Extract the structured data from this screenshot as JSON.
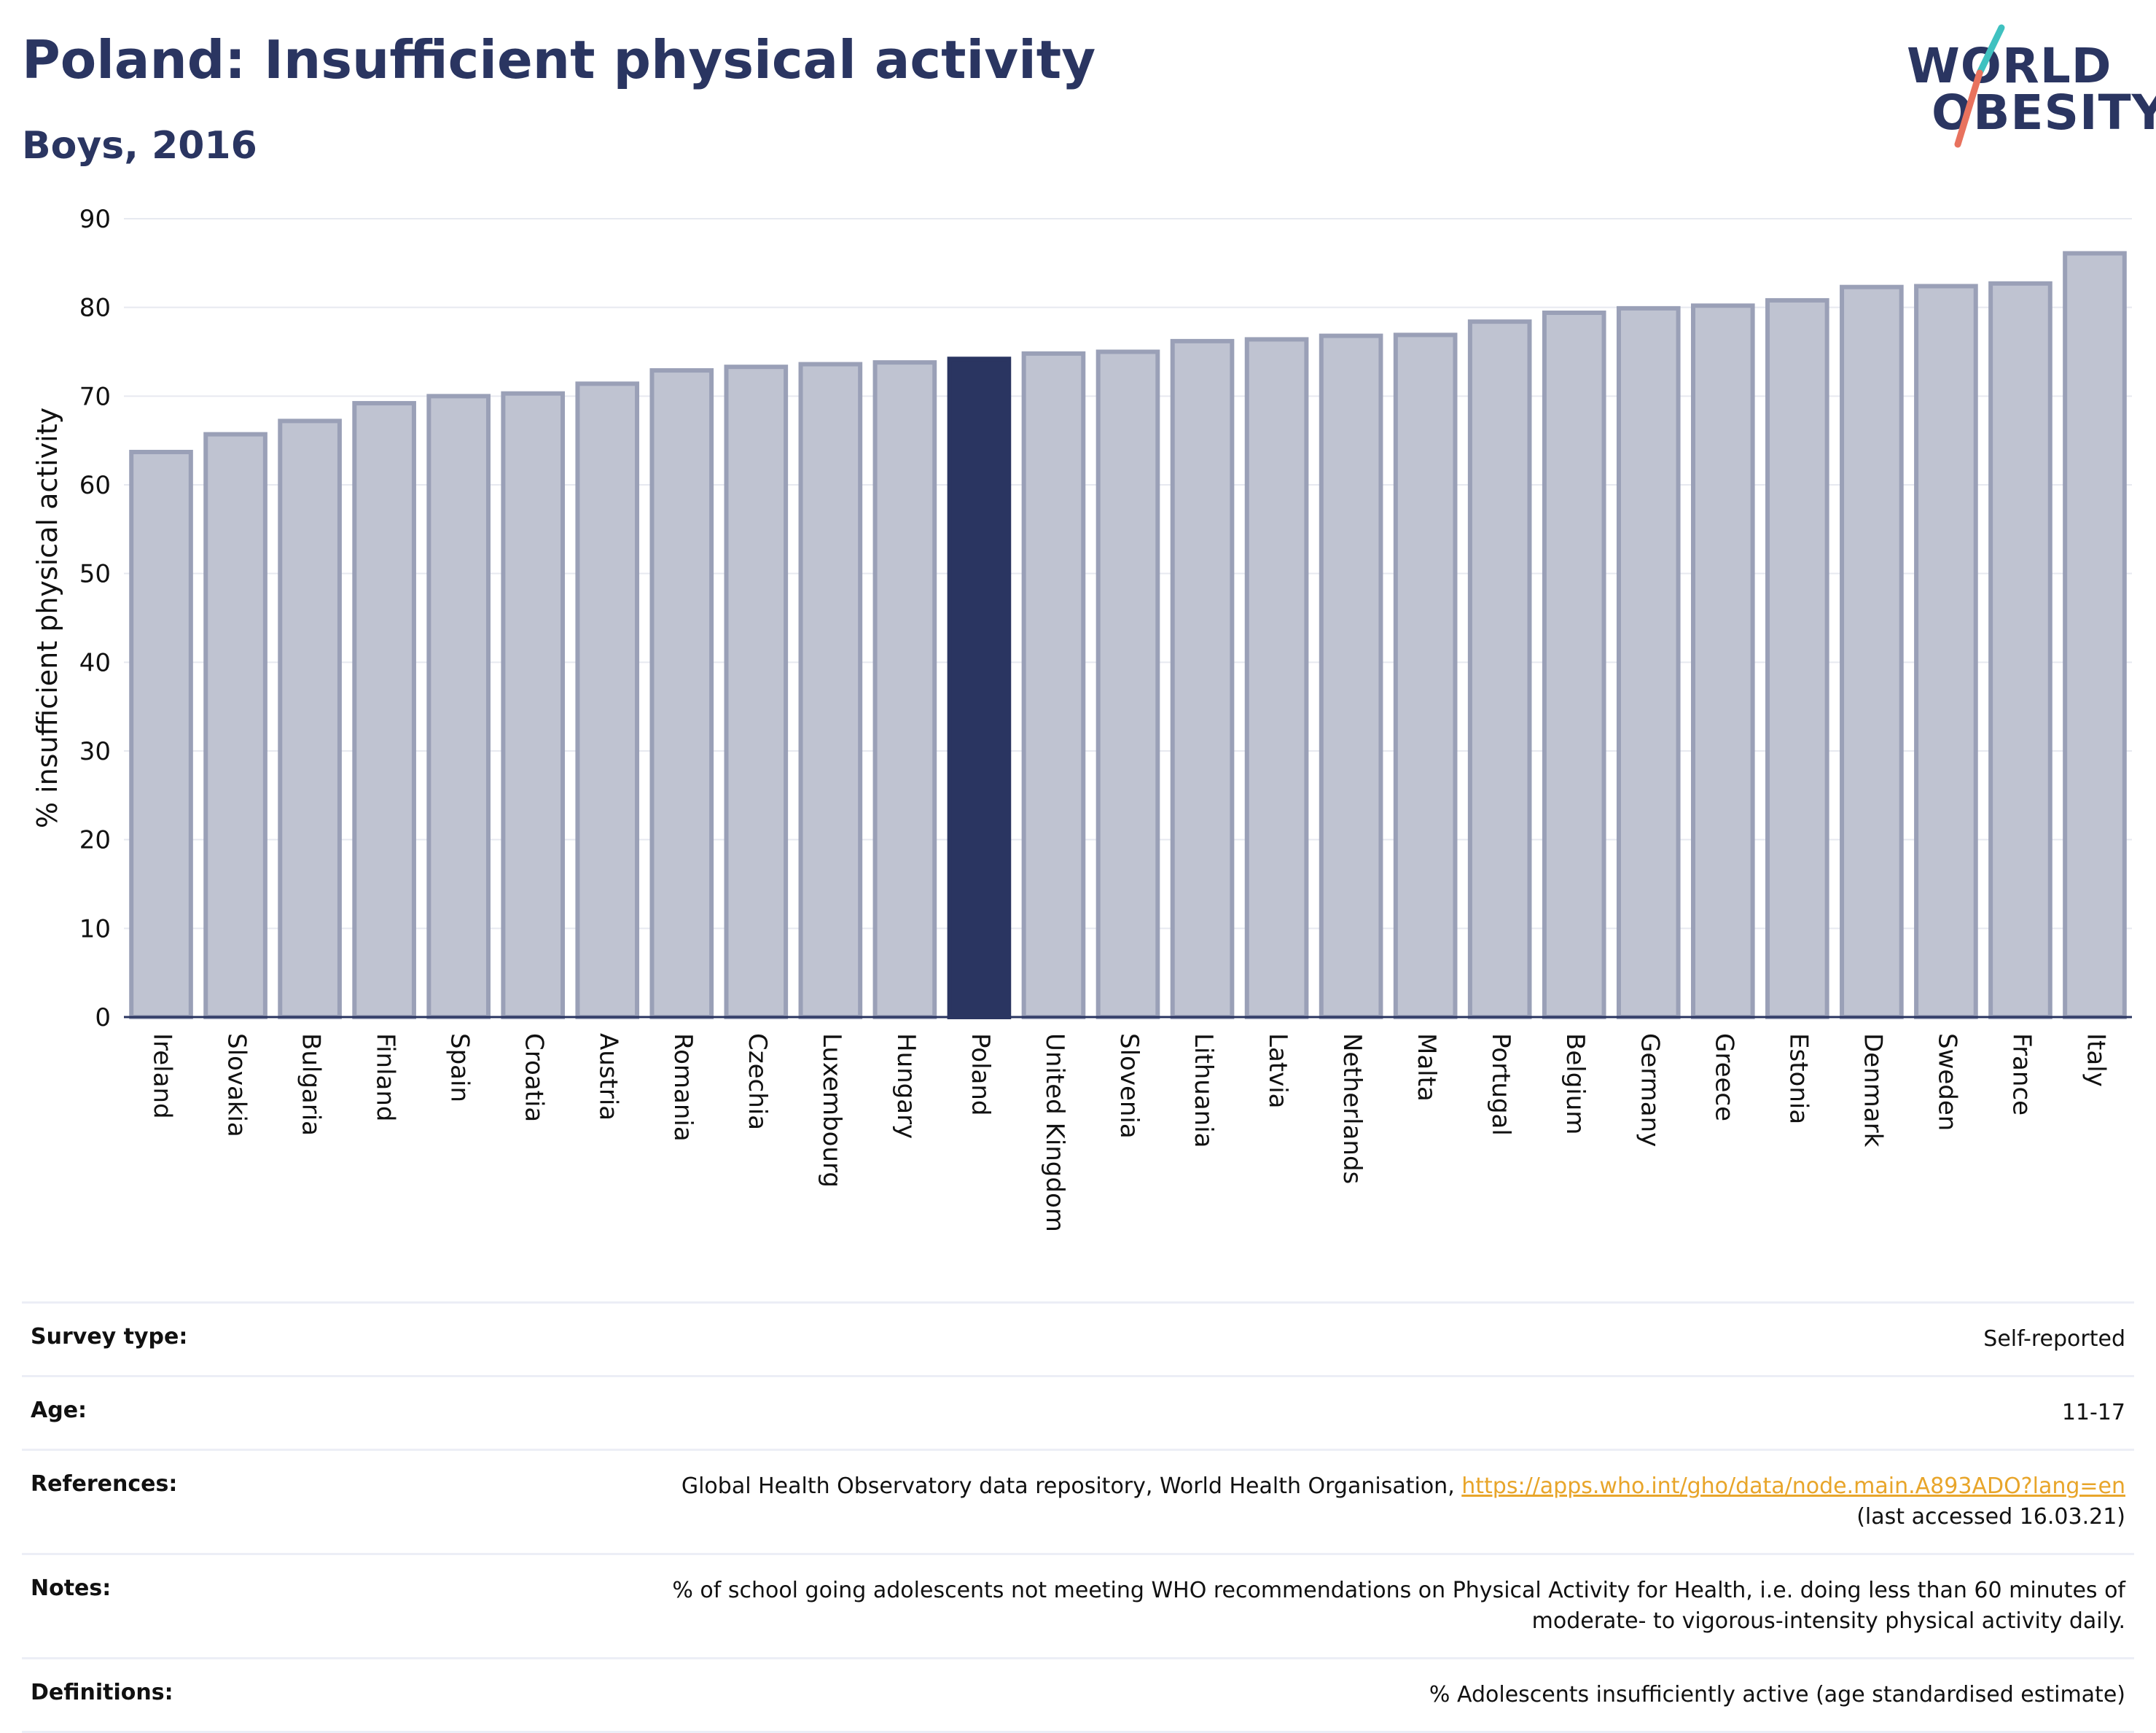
{
  "header": {
    "title": "Poland: Insufficient physical activity",
    "subtitle": "Boys, 2016",
    "logo_line1": "WORLD",
    "logo_line2": "OBESITY"
  },
  "colors": {
    "highlight": "#2a3561",
    "bar_fill": "#bfc3d1",
    "bar_stroke": "#9aa0b7",
    "accent_teal": "#3fc1c0",
    "accent_coral": "#e8725e"
  },
  "chart_data": {
    "type": "bar",
    "title": "Poland: Insufficient physical activity",
    "subtitle": "Boys, 2016",
    "xlabel": "",
    "ylabel": "% insufficient physical activity",
    "ylim": [
      0,
      90
    ],
    "yticks": [
      0,
      10,
      20,
      30,
      40,
      50,
      60,
      70,
      80,
      90
    ],
    "grid": true,
    "highlight": "Poland",
    "categories": [
      "Ireland",
      "Slovakia",
      "Bulgaria",
      "Finland",
      "Spain",
      "Croatia",
      "Austria",
      "Romania",
      "Czechia",
      "Luxembourg",
      "Hungary",
      "Poland",
      "United Kingdom",
      "Slovenia",
      "Lithuania",
      "Latvia",
      "Netherlands",
      "Malta",
      "Portugal",
      "Belgium",
      "Germany",
      "Greece",
      "Estonia",
      "Denmark",
      "Sweden",
      "France",
      "Italy"
    ],
    "values": [
      63.7,
      65.7,
      67.2,
      69.2,
      70.0,
      70.3,
      71.4,
      72.9,
      73.3,
      73.6,
      73.8,
      74.2,
      74.8,
      75.0,
      76.2,
      76.4,
      76.8,
      76.9,
      78.4,
      79.4,
      79.9,
      80.2,
      80.8,
      82.3,
      82.4,
      82.7,
      86.1
    ]
  },
  "info_table": {
    "survey_type_label": "Survey type:",
    "survey_type_value": "Self-reported",
    "age_label": "Age:",
    "age_value": "11-17",
    "references_label": "References:",
    "references_text": "Global Health Observatory data repository, World Health Organisation, ",
    "references_link": "https://apps.who.int/gho/data/node.main.A893ADO?lang=en",
    "references_accessed": "(last accessed 16.03.21)",
    "notes_label": "Notes:",
    "notes_line1": "% of school going adolescents not meeting WHO recommendations on Physical Activity for Health, i.e. doing less than 60 minutes of",
    "notes_line2": "moderate- to vigorous-intensity physical activity daily.",
    "definitions_label": "Definitions:",
    "definitions_value": "% Adolescents insufficiently active (age standardised estimate)"
  }
}
